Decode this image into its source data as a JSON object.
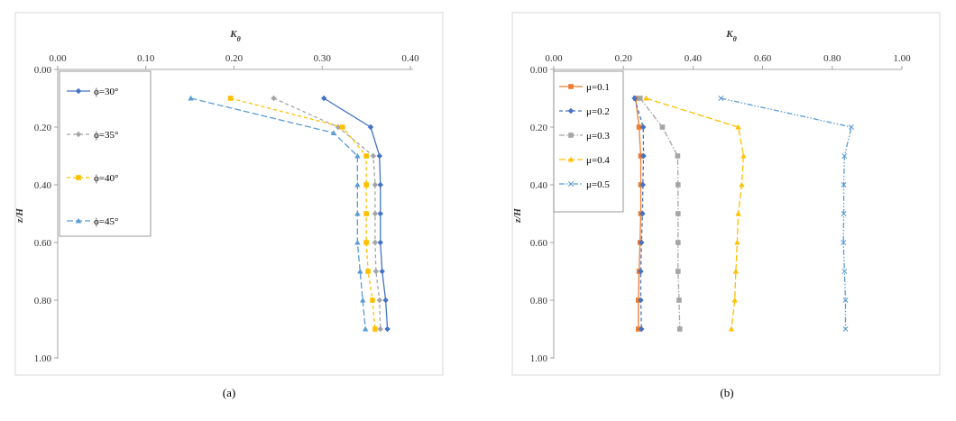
{
  "chart_data": [
    {
      "type": "line",
      "caption": "(a)",
      "xlabel": "Kθ",
      "ylabel": "z/H",
      "xlim": [
        0,
        0.4
      ],
      "ylim": [
        0,
        1.0
      ],
      "x_ticks": [
        "0.00",
        "0.10",
        "0.20",
        "0.30",
        "0.40"
      ],
      "y_ticks": [
        "0.00",
        "0.20",
        "0.40",
        "0.60",
        "0.80",
        "1.00"
      ],
      "y_axis_inverted": true,
      "x_axis_position": "top",
      "grid": false,
      "legend_position": "top-left",
      "series": [
        {
          "name": "ϕ=30°",
          "color": "#4472c4",
          "dash": "solid",
          "marker": "diamond",
          "points": [
            [
              0.302,
              0.1
            ],
            [
              0.355,
              0.2
            ],
            [
              0.365,
              0.3
            ],
            [
              0.366,
              0.4
            ],
            [
              0.366,
              0.5
            ],
            [
              0.366,
              0.6
            ],
            [
              0.368,
              0.7
            ],
            [
              0.372,
              0.8
            ],
            [
              0.374,
              0.9
            ]
          ]
        },
        {
          "name": "ϕ=35°",
          "color": "#a5a5a5",
          "dash": "dash",
          "marker": "diamond",
          "points": [
            [
              0.245,
              0.1
            ],
            [
              0.318,
              0.2
            ],
            [
              0.358,
              0.3
            ],
            [
              0.36,
              0.4
            ],
            [
              0.36,
              0.5
            ],
            [
              0.36,
              0.6
            ],
            [
              0.361,
              0.7
            ],
            [
              0.365,
              0.8
            ],
            [
              0.366,
              0.9
            ]
          ]
        },
        {
          "name": "ϕ=40°",
          "color": "#ffc000",
          "dash": "dash",
          "marker": "square",
          "points": [
            [
              0.196,
              0.1
            ],
            [
              0.323,
              0.2
            ],
            [
              0.35,
              0.3
            ],
            [
              0.35,
              0.4
            ],
            [
              0.35,
              0.5
            ],
            [
              0.35,
              0.6
            ],
            [
              0.352,
              0.7
            ],
            [
              0.357,
              0.8
            ],
            [
              0.36,
              0.9
            ]
          ]
        },
        {
          "name": "ϕ=45°",
          "color": "#5b9bd5",
          "dash": "longdash",
          "marker": "triangle",
          "points": [
            [
              0.151,
              0.1
            ],
            [
              0.313,
              0.22
            ],
            [
              0.34,
              0.3
            ],
            [
              0.34,
              0.4
            ],
            [
              0.34,
              0.5
            ],
            [
              0.34,
              0.6
            ],
            [
              0.343,
              0.7
            ],
            [
              0.346,
              0.8
            ],
            [
              0.349,
              0.9
            ]
          ]
        }
      ]
    },
    {
      "type": "line",
      "caption": "(b)",
      "xlabel": "Kθ",
      "ylabel": "z/H",
      "xlim": [
        0,
        1.0
      ],
      "ylim": [
        0,
        1.0
      ],
      "x_ticks": [
        "0.00",
        "0.20",
        "0.40",
        "0.60",
        "0.80",
        "1.00"
      ],
      "y_ticks": [
        "0.00",
        "0.20",
        "0.40",
        "0.60",
        "0.80",
        "1.00"
      ],
      "y_axis_inverted": true,
      "x_axis_position": "top",
      "grid": false,
      "legend_position": "top-left",
      "series": [
        {
          "name": "μ=0.1",
          "color": "#ed7d31",
          "dash": "solid",
          "marker": "square",
          "points": [
            [
              0.235,
              0.1
            ],
            [
              0.245,
              0.2
            ],
            [
              0.25,
              0.3
            ],
            [
              0.25,
              0.4
            ],
            [
              0.25,
              0.5
            ],
            [
              0.248,
              0.6
            ],
            [
              0.245,
              0.7
            ],
            [
              0.243,
              0.8
            ],
            [
              0.243,
              0.9
            ]
          ]
        },
        {
          "name": "μ=0.2",
          "color": "#4472c4",
          "dash": "dash",
          "marker": "diamond",
          "points": [
            [
              0.232,
              0.1
            ],
            [
              0.257,
              0.2
            ],
            [
              0.258,
              0.3
            ],
            [
              0.256,
              0.4
            ],
            [
              0.255,
              0.5
            ],
            [
              0.252,
              0.6
            ],
            [
              0.25,
              0.7
            ],
            [
              0.25,
              0.8
            ],
            [
              0.252,
              0.9
            ]
          ]
        },
        {
          "name": "μ=0.3",
          "color": "#a5a5a5",
          "dash": "dashdot",
          "marker": "square",
          "points": [
            [
              0.248,
              0.1
            ],
            [
              0.312,
              0.2
            ],
            [
              0.356,
              0.3
            ],
            [
              0.357,
              0.4
            ],
            [
              0.357,
              0.5
            ],
            [
              0.357,
              0.6
            ],
            [
              0.357,
              0.7
            ],
            [
              0.36,
              0.8
            ],
            [
              0.362,
              0.9
            ]
          ]
        },
        {
          "name": "μ=0.4",
          "color": "#ffc000",
          "dash": "longdash",
          "marker": "triangle",
          "points": [
            [
              0.265,
              0.1
            ],
            [
              0.53,
              0.2
            ],
            [
              0.545,
              0.3
            ],
            [
              0.54,
              0.4
            ],
            [
              0.53,
              0.5
            ],
            [
              0.527,
              0.6
            ],
            [
              0.523,
              0.7
            ],
            [
              0.52,
              0.8
            ],
            [
              0.51,
              0.9
            ]
          ]
        },
        {
          "name": "μ=0.5",
          "color": "#5b9bd5",
          "dash": "dashdotdot",
          "marker": "x",
          "points": [
            [
              0.48,
              0.1
            ],
            [
              0.855,
              0.2
            ],
            [
              0.835,
              0.3
            ],
            [
              0.833,
              0.4
            ],
            [
              0.833,
              0.5
            ],
            [
              0.832,
              0.6
            ],
            [
              0.835,
              0.7
            ],
            [
              0.838,
              0.8
            ],
            [
              0.838,
              0.9
            ]
          ]
        }
      ]
    }
  ]
}
